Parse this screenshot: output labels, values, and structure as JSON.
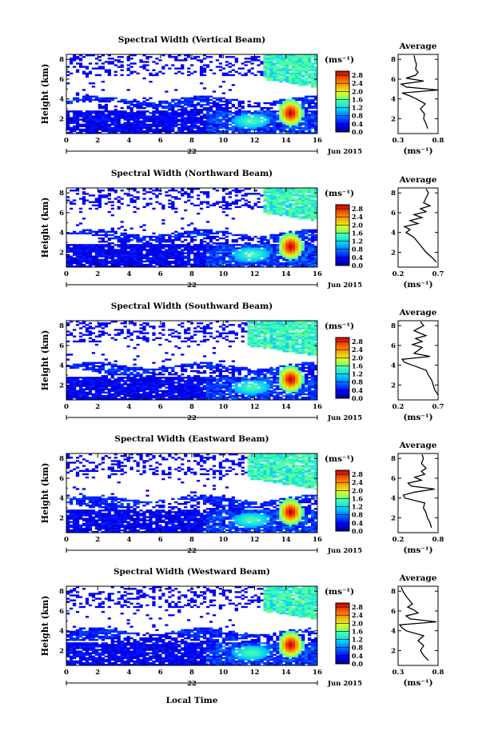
{
  "figure": {
    "xlabel": "Local Time",
    "date_label": "Jun 2015",
    "day_label": "22"
  },
  "chart_data": [
    {
      "type": "heatmap",
      "title": "Spectral Width (Vertical Beam)",
      "ylabel": "Height (km)",
      "xlim": [
        0,
        16
      ],
      "ylim": [
        0.5,
        8.5
      ],
      "xticks": [
        "0",
        "2",
        "4",
        "6",
        "8",
        "10",
        "12",
        "14",
        "16"
      ],
      "yticks": [
        "2",
        "4",
        "6",
        "8"
      ],
      "colorbar": {
        "unit": "(ms⁻¹)",
        "ticks": [
          "0.0",
          "0.4",
          "0.8",
          "1.2",
          "1.6",
          "2.0",
          "2.4",
          "2.8"
        ],
        "range": [
          0,
          3.0
        ]
      },
      "profile": {
        "title": "Average",
        "xlim": [
          0.3,
          0.8
        ],
        "xticks": [
          "0.3",
          "0.8"
        ],
        "ylim": [
          0.5,
          8.5
        ],
        "yticks": [
          "2",
          "4",
          "6",
          "8"
        ],
        "xlabel": "(ms⁻¹)",
        "heights": [
          1.0,
          1.5,
          2.0,
          2.5,
          3.0,
          3.5,
          4.0,
          4.3,
          4.6,
          4.9,
          5.2,
          5.5,
          5.8,
          6.1,
          6.4,
          6.7,
          7.0,
          7.5,
          8.0,
          8.4
        ],
        "values": [
          0.67,
          0.65,
          0.62,
          0.63,
          0.58,
          0.64,
          0.53,
          0.45,
          0.35,
          0.8,
          0.4,
          0.34,
          0.62,
          0.4,
          0.52,
          0.55,
          0.52,
          0.53,
          0.51,
          0.5
        ]
      }
    },
    {
      "type": "heatmap",
      "title": "Spectral Width (Northward Beam)",
      "ylabel": "Height (km)",
      "xlim": [
        0,
        16
      ],
      "ylim": [
        0.5,
        8.5
      ],
      "xticks": [
        "0",
        "2",
        "4",
        "6",
        "8",
        "10",
        "12",
        "14",
        "16"
      ],
      "yticks": [
        "2",
        "4",
        "6",
        "8"
      ],
      "colorbar": {
        "unit": "(ms⁻¹)",
        "ticks": [
          "0.0",
          "0.4",
          "0.8",
          "1.2",
          "1.6",
          "2.0",
          "2.4",
          "2.8"
        ],
        "range": [
          0,
          3.0
        ]
      },
      "profile": {
        "title": "Average",
        "xlim": [
          0.2,
          0.7
        ],
        "xticks": [
          "0.2",
          "0.7"
        ],
        "ylim": [
          0.5,
          8.5
        ],
        "yticks": [
          "2",
          "4",
          "6",
          "8"
        ],
        "xlabel": "(ms⁻¹)",
        "heights": [
          1.0,
          1.5,
          2.0,
          2.5,
          3.0,
          3.5,
          4.0,
          4.3,
          4.6,
          4.9,
          5.2,
          5.5,
          5.8,
          6.1,
          6.4,
          6.7,
          7.0,
          7.5,
          8.0,
          8.4
        ],
        "values": [
          0.68,
          0.62,
          0.55,
          0.5,
          0.45,
          0.4,
          0.3,
          0.35,
          0.28,
          0.45,
          0.35,
          0.5,
          0.4,
          0.55,
          0.48,
          0.6,
          0.52,
          0.55,
          0.58,
          0.55
        ]
      }
    },
    {
      "type": "heatmap",
      "title": "Spectral Width (Southward Beam)",
      "ylabel": "Height (km)",
      "xlim": [
        0,
        16
      ],
      "ylim": [
        0.5,
        8.5
      ],
      "xticks": [
        "0",
        "2",
        "4",
        "6",
        "8",
        "10",
        "12",
        "14",
        "16"
      ],
      "yticks": [
        "2",
        "4",
        "6",
        "8"
      ],
      "colorbar": {
        "unit": "(ms⁻¹)",
        "ticks": [
          "0.0",
          "0.4",
          "0.8",
          "1.2",
          "1.6",
          "2.0",
          "2.4",
          "2.8"
        ],
        "range": [
          0,
          3.0
        ]
      },
      "profile": {
        "title": "Average",
        "xlim": [
          0.2,
          0.7
        ],
        "xticks": [
          "0.2",
          "0.7"
        ],
        "ylim": [
          0.5,
          8.5
        ],
        "yticks": [
          "2",
          "4",
          "6",
          "8"
        ],
        "xlabel": "(ms⁻¹)",
        "heights": [
          1.0,
          1.5,
          2.0,
          2.5,
          3.0,
          3.5,
          4.0,
          4.3,
          4.6,
          4.9,
          5.2,
          5.5,
          5.8,
          6.1,
          6.4,
          6.7,
          7.0,
          7.5,
          8.0,
          8.4
        ],
        "values": [
          0.7,
          0.66,
          0.64,
          0.62,
          0.58,
          0.55,
          0.38,
          0.28,
          0.25,
          0.6,
          0.4,
          0.45,
          0.5,
          0.38,
          0.5,
          0.42,
          0.55,
          0.4,
          0.52,
          0.48
        ]
      }
    },
    {
      "type": "heatmap",
      "title": "Spectral Width (Eastward Beam)",
      "ylabel": "Height (km)",
      "xlim": [
        0,
        16
      ],
      "ylim": [
        0.5,
        8.5
      ],
      "xticks": [
        "0",
        "2",
        "4",
        "6",
        "8",
        "10",
        "12",
        "14",
        "16"
      ],
      "yticks": [
        "2",
        "4",
        "6",
        "8"
      ],
      "colorbar": {
        "unit": "(ms⁻¹)",
        "ticks": [
          "0.0",
          "0.4",
          "0.8",
          "1.2",
          "1.6",
          "2.0",
          "2.4",
          "2.8"
        ],
        "range": [
          0,
          3.0
        ]
      },
      "profile": {
        "title": "Average",
        "xlim": [
          0.2,
          0.8
        ],
        "xticks": [
          "0.2",
          "0.8"
        ],
        "ylim": [
          0.5,
          8.5
        ],
        "yticks": [
          "2",
          "4",
          "6",
          "8"
        ],
        "xlabel": "(ms⁻¹)",
        "heights": [
          1.0,
          1.5,
          2.0,
          2.5,
          3.0,
          3.5,
          4.0,
          4.3,
          4.6,
          4.9,
          5.2,
          5.5,
          5.8,
          6.1,
          6.4,
          6.7,
          7.0,
          7.5,
          8.0,
          8.4
        ],
        "values": [
          0.7,
          0.68,
          0.64,
          0.62,
          0.58,
          0.6,
          0.3,
          0.28,
          0.45,
          0.75,
          0.4,
          0.35,
          0.55,
          0.45,
          0.6,
          0.55,
          0.62,
          0.55,
          0.58,
          0.56
        ]
      }
    },
    {
      "type": "heatmap",
      "title": "Spectral Width (Westward Beam)",
      "ylabel": "Height (km)",
      "xlim": [
        0,
        16
      ],
      "ylim": [
        0.5,
        8.5
      ],
      "xticks": [
        "0",
        "2",
        "4",
        "6",
        "8",
        "10",
        "12",
        "14",
        "16"
      ],
      "yticks": [
        "2",
        "4",
        "6",
        "8"
      ],
      "colorbar": {
        "unit": "(ms⁻¹)",
        "ticks": [
          "0.0",
          "0.4",
          "0.8",
          "1.2",
          "1.6",
          "2.0",
          "2.4",
          "2.8"
        ],
        "range": [
          0,
          3.0
        ]
      },
      "profile": {
        "title": "Average",
        "xlim": [
          0.3,
          0.8
        ],
        "xticks": [
          "0.3",
          "0.8"
        ],
        "ylim": [
          0.5,
          8.5
        ],
        "yticks": [
          "2",
          "4",
          "6",
          "8"
        ],
        "xlabel": "(ms⁻¹)",
        "heights": [
          1.0,
          1.5,
          2.0,
          2.5,
          3.0,
          3.5,
          4.0,
          4.3,
          4.6,
          4.9,
          5.2,
          5.5,
          5.8,
          6.1,
          6.4,
          6.7,
          7.0,
          7.5,
          8.0,
          8.4
        ],
        "values": [
          0.68,
          0.62,
          0.58,
          0.62,
          0.55,
          0.62,
          0.4,
          0.35,
          0.32,
          0.78,
          0.45,
          0.4,
          0.55,
          0.5,
          0.42,
          0.48,
          0.45,
          0.4,
          0.36,
          0.34
        ]
      }
    }
  ]
}
